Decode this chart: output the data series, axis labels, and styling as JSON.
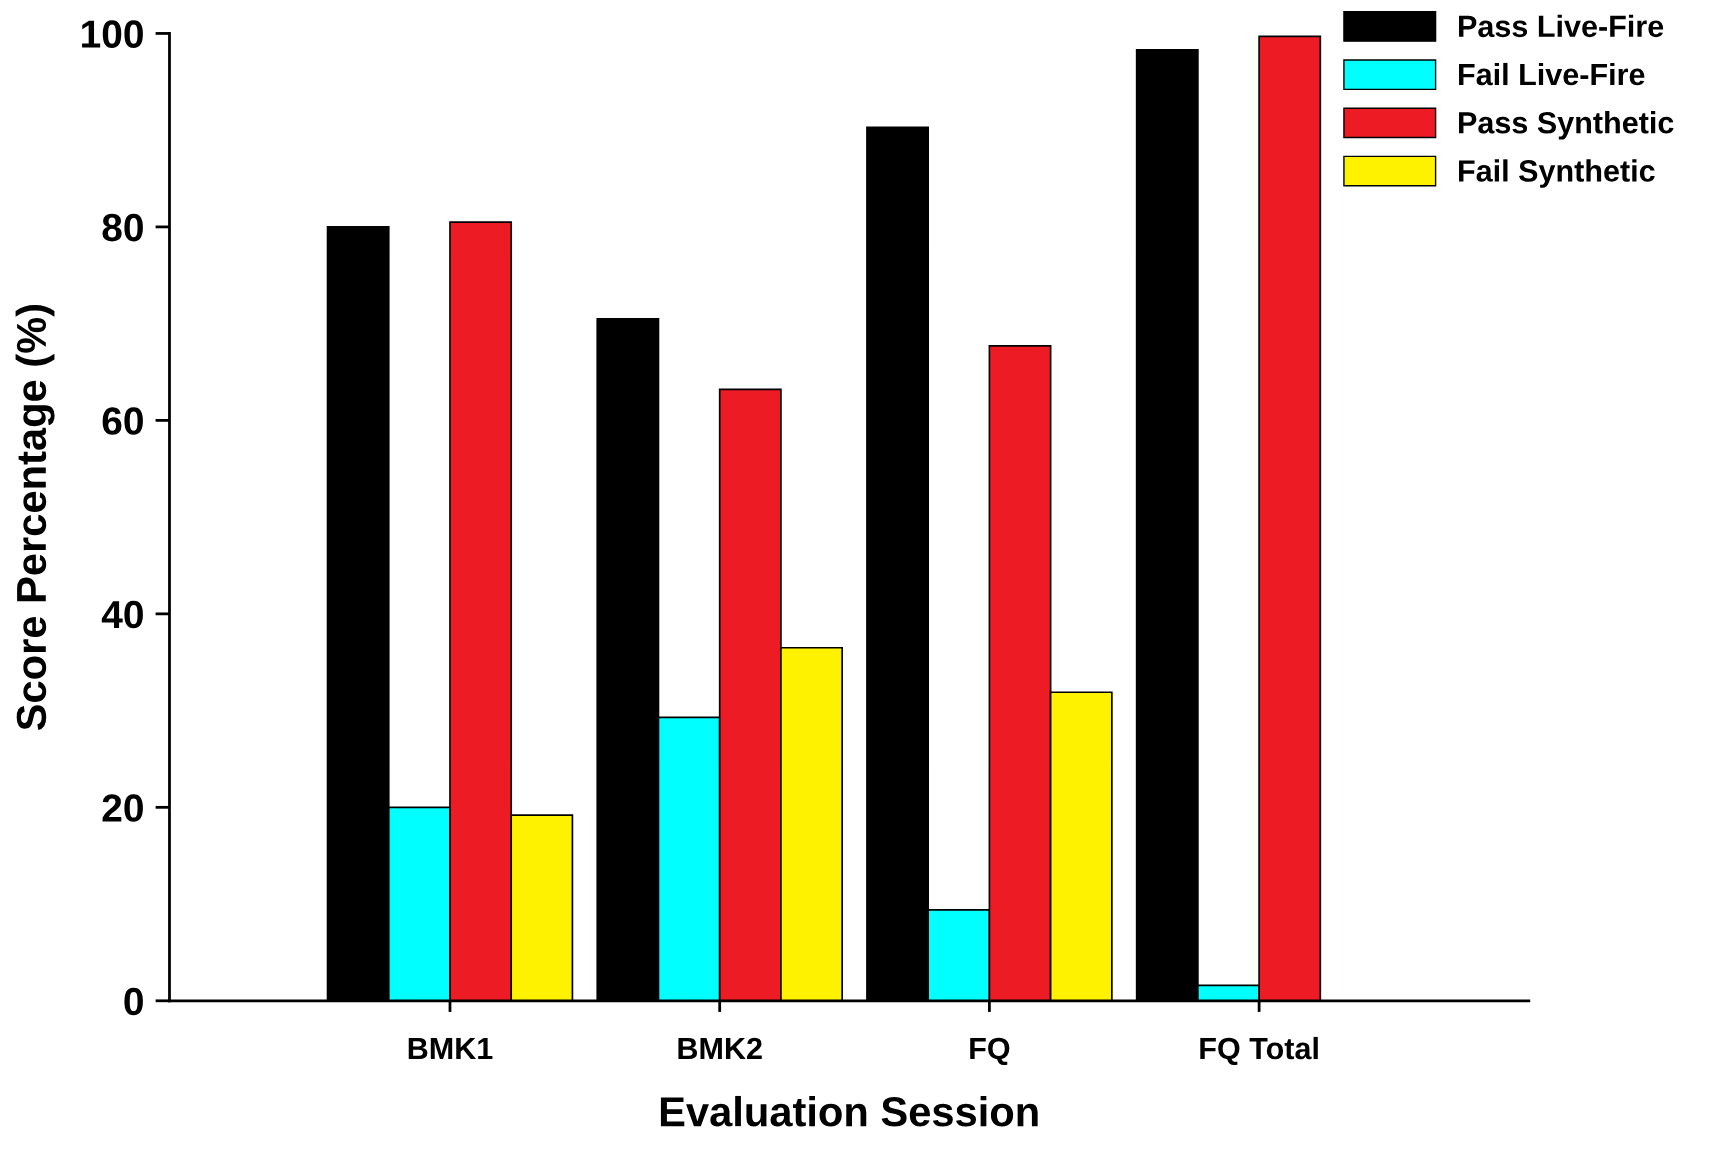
{
  "chart_data": {
    "type": "bar",
    "xlabel": "Evaluation Session",
    "ylabel": "Score Percentage (%)",
    "categories": [
      "BMK1",
      "BMK2",
      "FQ",
      "FQ Total"
    ],
    "series": [
      {
        "name": "Pass Live-Fire",
        "color": "#000000",
        "values": [
          80,
          70.5,
          90.3,
          98.3
        ]
      },
      {
        "name": "Fail Live-Fire",
        "color": "#00ffff",
        "values": [
          20,
          29.3,
          9.4,
          1.6
        ]
      },
      {
        "name": "Pass Synthetic",
        "color": "#ed1c24",
        "values": [
          80.5,
          63.2,
          67.7,
          99.7
        ]
      },
      {
        "name": "Fail Synthetic",
        "color": "#fff200",
        "values": [
          19.2,
          36.5,
          31.9,
          null
        ]
      }
    ],
    "ylim": [
      0,
      100
    ],
    "yticks": [
      0,
      20,
      40,
      60,
      80,
      100
    ],
    "grid": false,
    "legend": "top right"
  }
}
